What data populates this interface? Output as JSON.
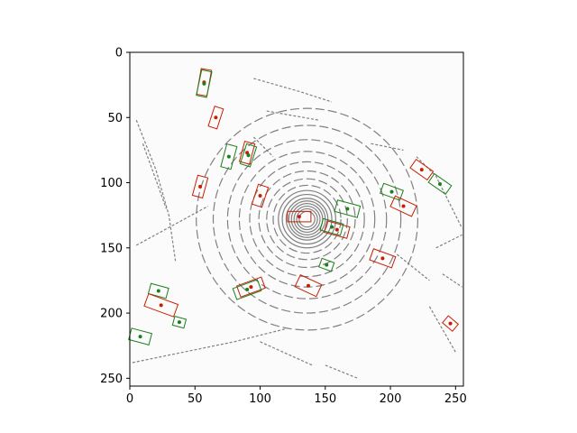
{
  "chart_data": {
    "type": "scatter",
    "title": "",
    "xlabel": "",
    "ylabel": "",
    "xlim": [
      0,
      256
    ],
    "ylim": [
      256,
      0
    ],
    "y_inverted": true,
    "grid": false,
    "legend": "none",
    "x_ticks": [
      0,
      50,
      100,
      150,
      200,
      250
    ],
    "y_ticks": [
      0,
      50,
      100,
      150,
      200,
      250
    ],
    "background": "#fbfbfb",
    "colors": {
      "lidar": "#808080",
      "green": "#1a7f1a",
      "red": "#c81e00"
    },
    "lidar_rings": [
      {
        "cx": 136,
        "cy": 128,
        "r": 6
      },
      {
        "cx": 136,
        "cy": 128,
        "r": 8
      },
      {
        "cx": 136,
        "cy": 128,
        "r": 10
      },
      {
        "cx": 136,
        "cy": 128,
        "r": 12
      },
      {
        "cx": 136,
        "cy": 128,
        "r": 14
      },
      {
        "cx": 136,
        "cy": 128,
        "r": 16
      },
      {
        "cx": 136,
        "cy": 128,
        "r": 19
      },
      {
        "cx": 136,
        "cy": 128,
        "r": 22
      },
      {
        "cx": 136,
        "cy": 128,
        "r": 26
      },
      {
        "cx": 136,
        "cy": 128,
        "r": 31
      },
      {
        "cx": 136,
        "cy": 128,
        "r": 37
      },
      {
        "cx": 136,
        "cy": 128,
        "r": 44
      },
      {
        "cx": 136,
        "cy": 128,
        "r": 52
      },
      {
        "cx": 136,
        "cy": 128,
        "r": 61
      },
      {
        "cx": 136,
        "cy": 128,
        "r": 72
      },
      {
        "cx": 136,
        "cy": 128,
        "r": 85
      }
    ],
    "lidar_segments": [
      [
        [
          5,
          148
        ],
        [
          60,
          118
        ]
      ],
      [
        [
          2,
          238
        ],
        [
          80,
          222
        ],
        [
          120,
          212
        ]
      ],
      [
        [
          100,
          222
        ],
        [
          140,
          240
        ]
      ],
      [
        [
          5,
          52
        ],
        [
          20,
          90
        ],
        [
          30,
          125
        ],
        [
          35,
          160
        ]
      ],
      [
        [
          10,
          70
        ],
        [
          28,
          120
        ]
      ],
      [
        [
          95,
          20
        ],
        [
          130,
          30
        ],
        [
          155,
          38
        ]
      ],
      [
        [
          105,
          45
        ],
        [
          145,
          52
        ]
      ],
      [
        [
          185,
          70
        ],
        [
          210,
          75
        ]
      ],
      [
        [
          220,
          80
        ],
        [
          235,
          95
        ],
        [
          255,
          135
        ]
      ],
      [
        [
          235,
          150
        ],
        [
          255,
          140
        ]
      ],
      [
        [
          240,
          170
        ],
        [
          255,
          180
        ]
      ],
      [
        [
          230,
          195
        ],
        [
          250,
          230
        ]
      ],
      [
        [
          95,
          65
        ],
        [
          110,
          80
        ]
      ],
      [
        [
          205,
          155
        ],
        [
          230,
          175
        ]
      ],
      [
        [
          150,
          240
        ],
        [
          175,
          250
        ]
      ]
    ],
    "boxes": [
      {
        "color": "red",
        "cx": 57,
        "cy": 23,
        "w": 8,
        "h": 20,
        "angle": 10
      },
      {
        "color": "green",
        "cx": 57,
        "cy": 24,
        "w": 8,
        "h": 20,
        "angle": 12
      },
      {
        "color": "red",
        "cx": 66,
        "cy": 50,
        "w": 7,
        "h": 16,
        "angle": 18
      },
      {
        "color": "green",
        "cx": 76,
        "cy": 80,
        "w": 8,
        "h": 18,
        "angle": 15
      },
      {
        "color": "red",
        "cx": 90,
        "cy": 77,
        "w": 8,
        "h": 16,
        "angle": 15
      },
      {
        "color": "green",
        "cx": 91,
        "cy": 79,
        "w": 8,
        "h": 16,
        "angle": 18
      },
      {
        "color": "red",
        "cx": 54,
        "cy": 103,
        "w": 8,
        "h": 16,
        "angle": 15
      },
      {
        "color": "red",
        "cx": 100,
        "cy": 110,
        "w": 8,
        "h": 16,
        "angle": 18
      },
      {
        "color": "red",
        "cx": 130,
        "cy": 126,
        "w": 18,
        "h": 8,
        "angle": 0
      },
      {
        "color": "green",
        "cx": 167,
        "cy": 120,
        "w": 18,
        "h": 9,
        "angle": 15
      },
      {
        "color": "red",
        "cx": 159,
        "cy": 136,
        "w": 18,
        "h": 9,
        "angle": 15
      },
      {
        "color": "green",
        "cx": 155,
        "cy": 134,
        "w": 16,
        "h": 9,
        "angle": 15
      },
      {
        "color": "green",
        "cx": 201,
        "cy": 107,
        "w": 16,
        "h": 8,
        "angle": 20
      },
      {
        "color": "red",
        "cx": 210,
        "cy": 118,
        "w": 18,
        "h": 9,
        "angle": 25
      },
      {
        "color": "red",
        "cx": 224,
        "cy": 90,
        "w": 16,
        "h": 8,
        "angle": 35
      },
      {
        "color": "green",
        "cx": 238,
        "cy": 101,
        "w": 16,
        "h": 8,
        "angle": 35
      },
      {
        "color": "red",
        "cx": 194,
        "cy": 158,
        "w": 18,
        "h": 9,
        "angle": 20
      },
      {
        "color": "green",
        "cx": 151,
        "cy": 163,
        "w": 10,
        "h": 7,
        "angle": 20
      },
      {
        "color": "red",
        "cx": 137,
        "cy": 179,
        "w": 18,
        "h": 10,
        "angle": 25
      },
      {
        "color": "red",
        "cx": 93,
        "cy": 180,
        "w": 20,
        "h": 9,
        "angle": -20
      },
      {
        "color": "green",
        "cx": 90,
        "cy": 182,
        "w": 20,
        "h": 9,
        "angle": -20
      },
      {
        "color": "green",
        "cx": 22,
        "cy": 183,
        "w": 14,
        "h": 8,
        "angle": 15
      },
      {
        "color": "red",
        "cx": 24,
        "cy": 194,
        "w": 24,
        "h": 10,
        "angle": 20
      },
      {
        "color": "green",
        "cx": 38,
        "cy": 207,
        "w": 9,
        "h": 7,
        "angle": 15
      },
      {
        "color": "green",
        "cx": 8,
        "cy": 218,
        "w": 16,
        "h": 9,
        "angle": 15
      },
      {
        "color": "red",
        "cx": 246,
        "cy": 208,
        "w": 10,
        "h": 7,
        "angle": 40
      }
    ]
  }
}
